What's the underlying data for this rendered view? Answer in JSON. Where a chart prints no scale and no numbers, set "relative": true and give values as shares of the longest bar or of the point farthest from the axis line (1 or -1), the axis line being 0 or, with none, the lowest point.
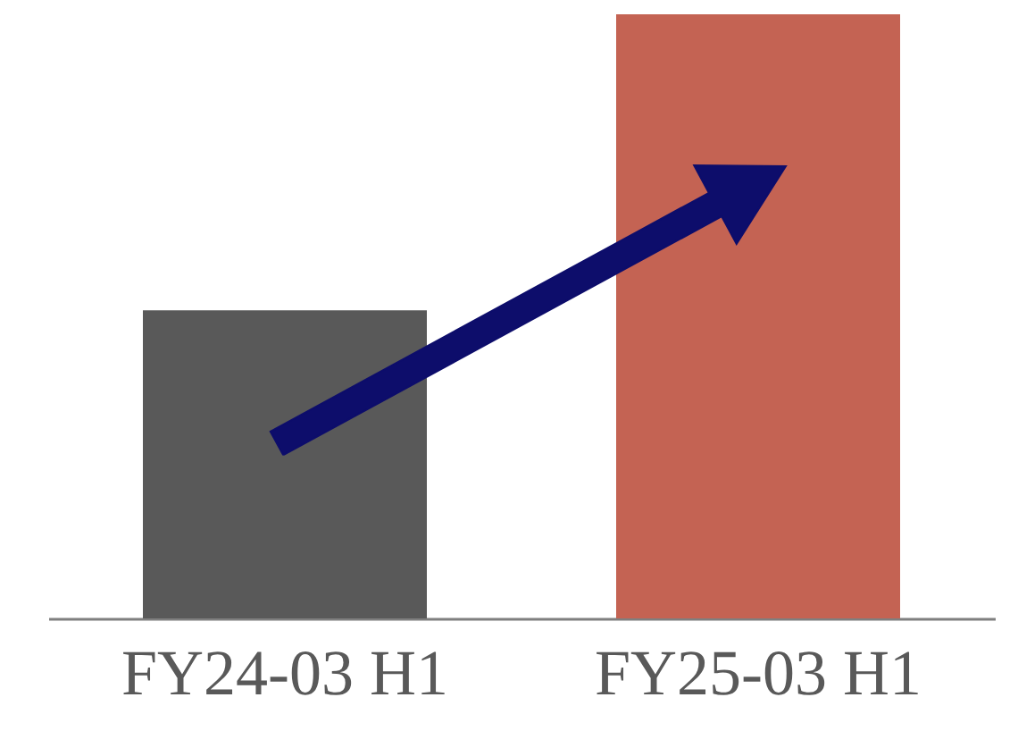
{
  "chart_data": {
    "type": "bar",
    "relative": true,
    "categories": [
      "FY24-03 H1",
      "FY25-03 H1"
    ],
    "values": [
      0.51,
      1
    ],
    "colors": [
      "#595959",
      "#c46353"
    ]
  }
}
